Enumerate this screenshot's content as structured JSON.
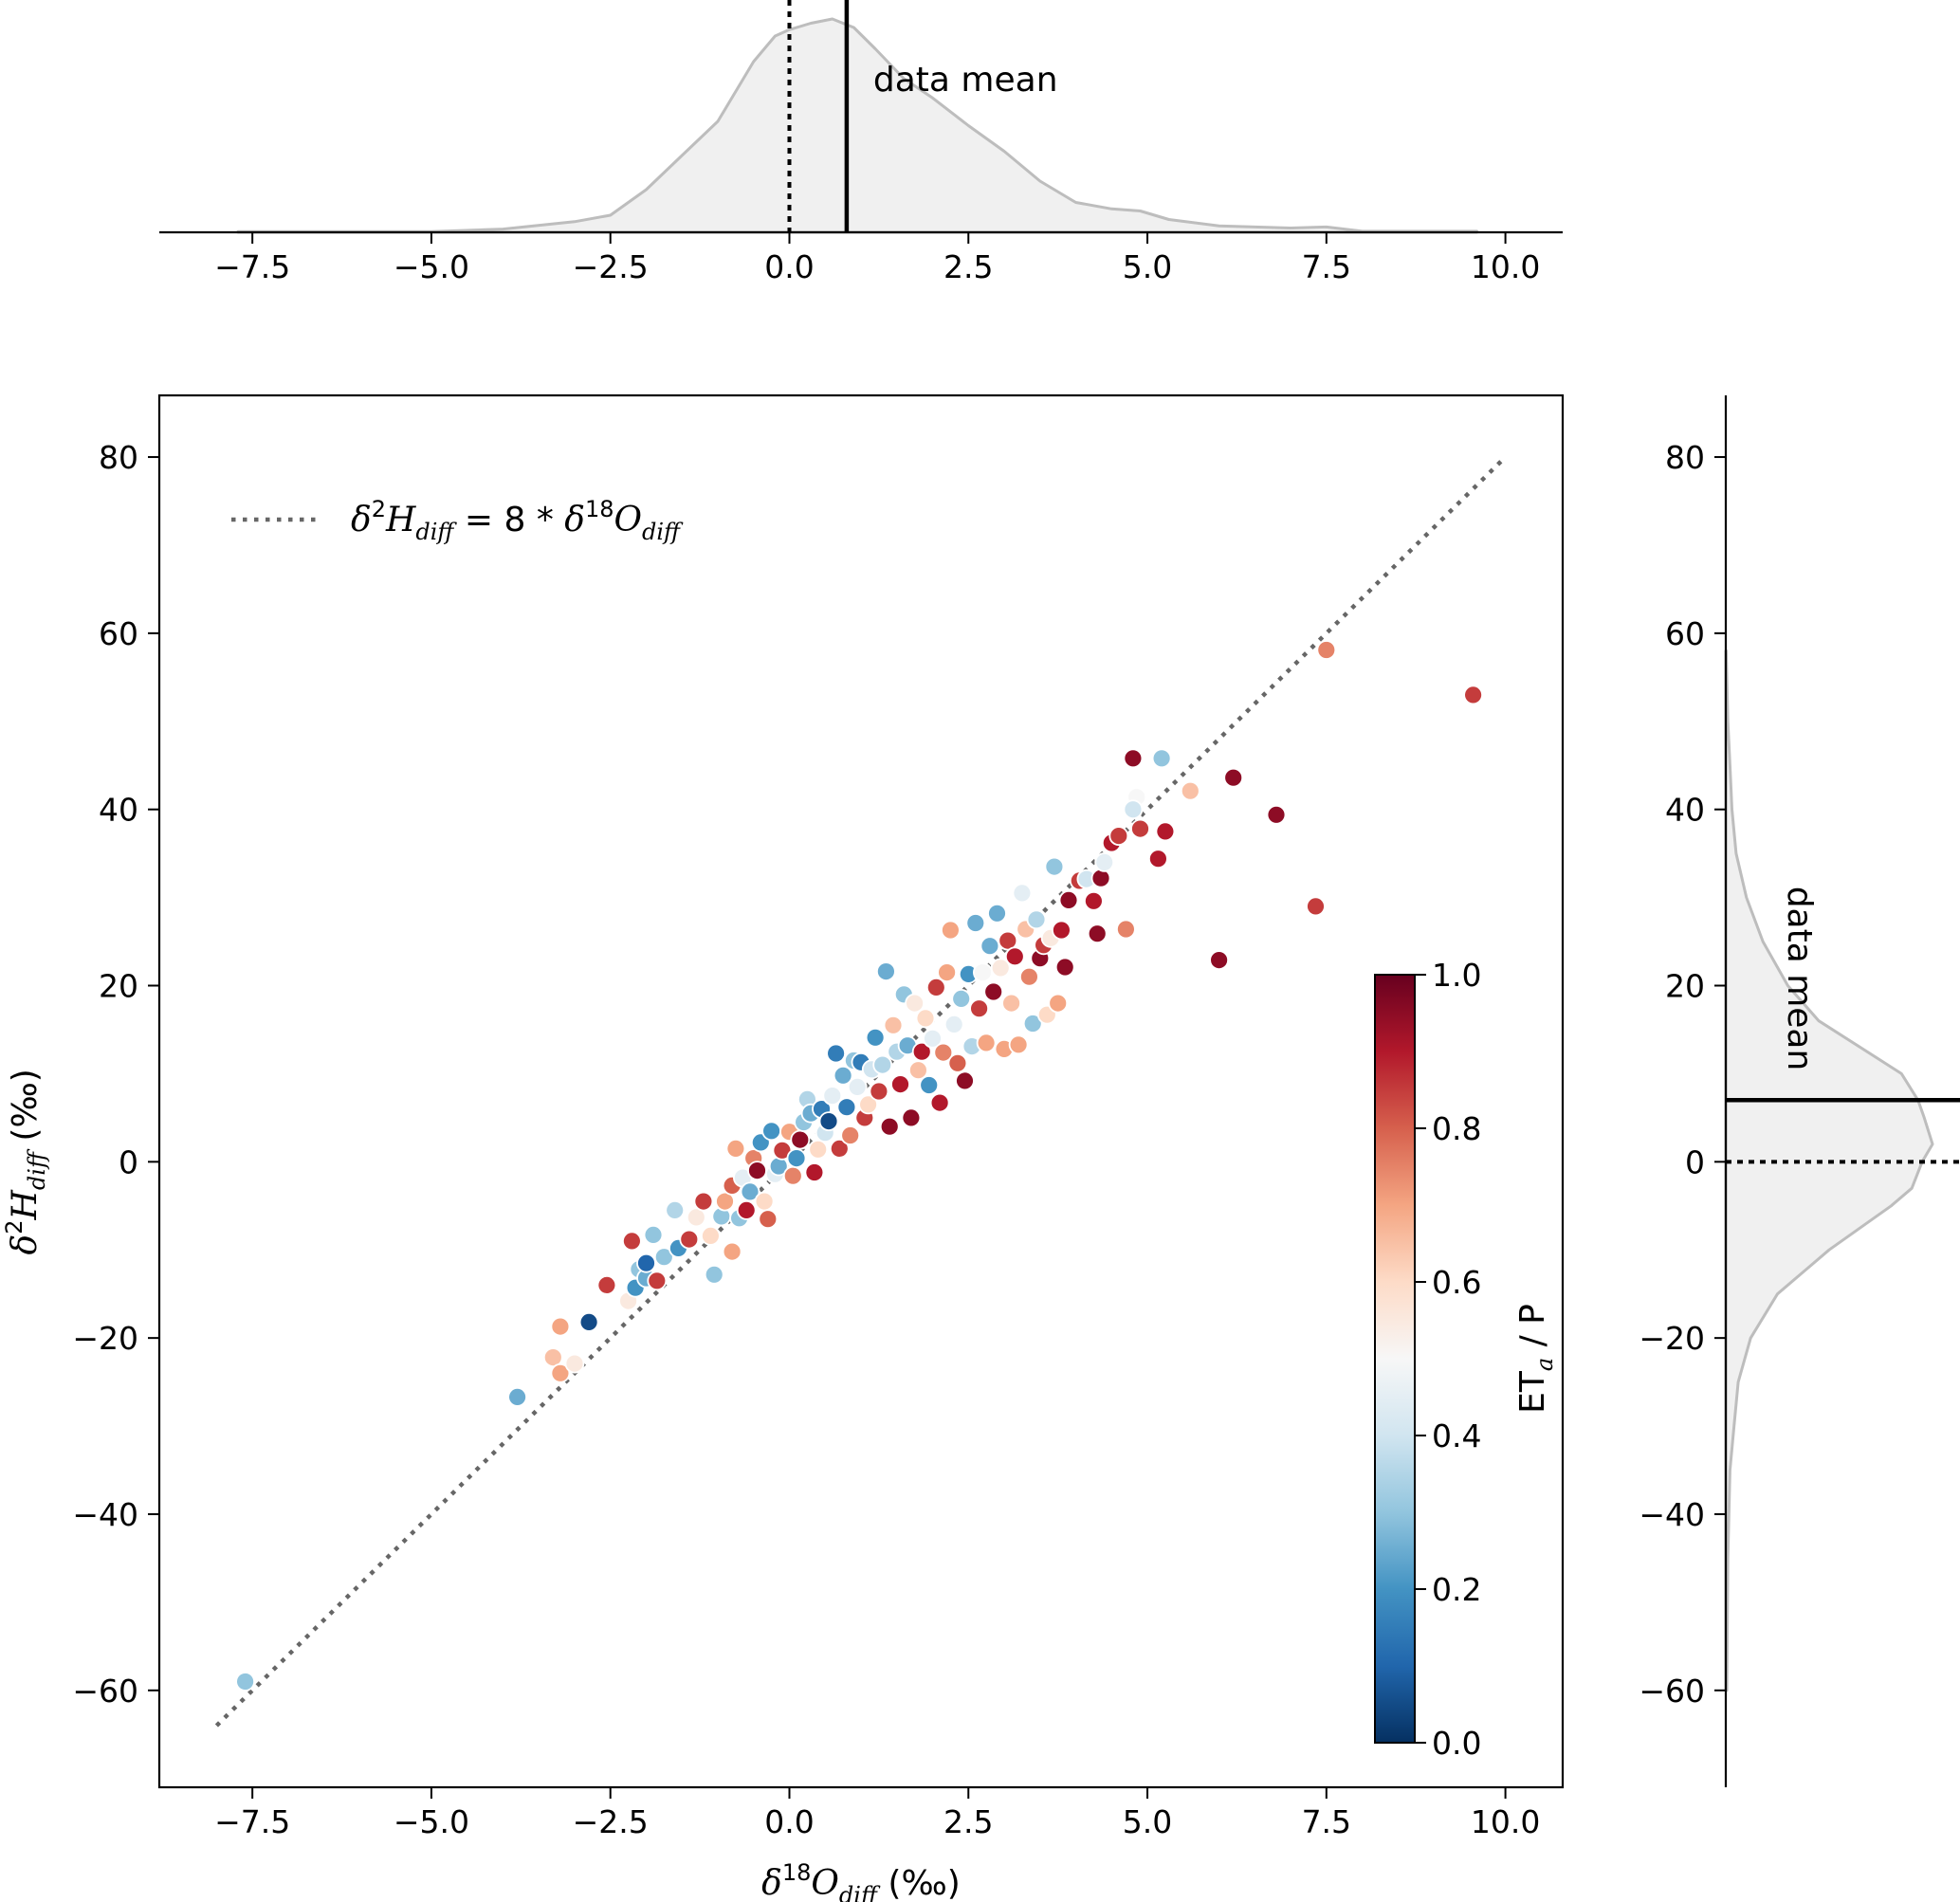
{
  "chart_data": {
    "type": "scatter",
    "xlabel": {
      "delta": "δ",
      "sup": "18",
      "base": "O",
      "sub": "diff",
      "unit": " (‰)"
    },
    "ylabel": {
      "delta": "δ",
      "sup": "2",
      "base": "H",
      "sub": "diff",
      "unit": "  (‰)"
    },
    "xlim": [
      -8.8,
      10.8
    ],
    "ylim": [
      -71,
      87
    ],
    "xticks": [
      -7.5,
      -5.0,
      -2.5,
      0.0,
      2.5,
      5.0,
      7.5,
      10.0
    ],
    "xtick_labels": [
      "−7.5",
      "−5.0",
      "−2.5",
      "0.0",
      "2.5",
      "5.0",
      "7.5",
      "10.0"
    ],
    "yticks": [
      -60,
      -40,
      -20,
      0,
      20,
      40,
      60,
      80
    ],
    "ytick_labels": [
      "−60",
      "−40",
      "−20",
      "0",
      "20",
      "40",
      "60",
      "80"
    ],
    "grid": false,
    "legend": {
      "placement": "upper-left",
      "line_style": "dotted",
      "label": {
        "d1": "δ",
        "s1": "2",
        "b1": "H",
        "sub1": "diff",
        "mid": " = 8 * ",
        "d2": "δ",
        "s2": "18",
        "b2": "O",
        "sub2": "diff"
      }
    },
    "reference_line": {
      "slope": 8,
      "intercept": 0,
      "x_range": [
        -8,
        10
      ],
      "color": "#666666"
    },
    "colorbar": {
      "label": {
        "base": "ET",
        "sub": "a",
        "rest": " / P"
      },
      "range": [
        0,
        1
      ],
      "ticks": [
        0.0,
        0.2,
        0.4,
        0.6,
        0.8,
        1.0
      ],
      "tick_labels": [
        "0.0",
        "0.2",
        "0.4",
        "0.6",
        "0.8",
        "1.0"
      ],
      "colormap": "RdBu_r",
      "colors": [
        "#053061",
        "#2166ac",
        "#4393c3",
        "#92c5de",
        "#d1e5f0",
        "#f7f7f7",
        "#fddbc7",
        "#f4a582",
        "#d6604d",
        "#b2182b",
        "#67001f"
      ]
    },
    "points": [
      [
        -7.6,
        -59,
        0.3
      ],
      [
        -3.8,
        -26.7,
        0.25
      ],
      [
        -3.3,
        -22.2,
        0.65
      ],
      [
        -3.2,
        -18.7,
        0.7
      ],
      [
        -3.2,
        -24,
        0.7
      ],
      [
        -3.0,
        -22.9,
        0.55
      ],
      [
        -2.8,
        -18.2,
        0.05
      ],
      [
        -2.55,
        -14,
        0.85
      ],
      [
        -2.25,
        -15.8,
        0.55
      ],
      [
        -2.15,
        -14.3,
        0.2
      ],
      [
        -2.1,
        -12.2,
        0.3
      ],
      [
        -2.0,
        -13.2,
        0.25
      ],
      [
        -2.2,
        -9,
        0.85
      ],
      [
        -2.0,
        -11.5,
        0.1
      ],
      [
        -1.9,
        -8.3,
        0.3
      ],
      [
        -1.85,
        -13.5,
        0.85
      ],
      [
        -1.75,
        -10.8,
        0.3
      ],
      [
        -1.6,
        -5.5,
        0.35
      ],
      [
        -1.55,
        -9.8,
        0.2
      ],
      [
        -1.4,
        -8.8,
        0.85
      ],
      [
        -1.3,
        -6.3,
        0.55
      ],
      [
        -1.2,
        -4.5,
        0.85
      ],
      [
        -1.1,
        -8.4,
        0.6
      ],
      [
        -1.05,
        -12.8,
        0.3
      ],
      [
        -0.95,
        -6.2,
        0.3
      ],
      [
        -0.9,
        -4.5,
        0.7
      ],
      [
        -0.8,
        -10.2,
        0.7
      ],
      [
        -0.8,
        -2.7,
        0.8
      ],
      [
        -0.75,
        1.5,
        0.7
      ],
      [
        -0.7,
        -6.4,
        0.3
      ],
      [
        -0.65,
        -1.8,
        0.45
      ],
      [
        -0.6,
        -5.5,
        0.9
      ],
      [
        -0.55,
        -3.4,
        0.25
      ],
      [
        -0.5,
        0.4,
        0.75
      ],
      [
        -0.45,
        -1.0,
        0.95
      ],
      [
        -0.4,
        2.2,
        0.2
      ],
      [
        -0.35,
        -4.5,
        0.6
      ],
      [
        -0.3,
        -6.5,
        0.8
      ],
      [
        -0.25,
        3.5,
        0.2
      ],
      [
        -0.2,
        -1.4,
        0.45
      ],
      [
        -0.15,
        -0.5,
        0.25
      ],
      [
        -0.1,
        1.3,
        0.85
      ],
      [
        0.0,
        3.4,
        0.7
      ],
      [
        0.05,
        -1.6,
        0.75
      ],
      [
        0.1,
        0.4,
        0.2
      ],
      [
        0.15,
        2.5,
        0.95
      ],
      [
        0.2,
        4.5,
        0.3
      ],
      [
        0.25,
        7.1,
        0.35
      ],
      [
        0.3,
        5.5,
        0.25
      ],
      [
        0.35,
        -1.2,
        0.9
      ],
      [
        0.4,
        1.4,
        0.6
      ],
      [
        0.45,
        6.0,
        0.15
      ],
      [
        0.5,
        3.3,
        0.4
      ],
      [
        0.55,
        4.6,
        0.05
      ],
      [
        0.6,
        7.5,
        0.45
      ],
      [
        0.65,
        12.3,
        0.15
      ],
      [
        0.7,
        1.5,
        0.85
      ],
      [
        0.75,
        9.8,
        0.25
      ],
      [
        0.8,
        6.2,
        0.15
      ],
      [
        0.85,
        3.0,
        0.75
      ],
      [
        0.9,
        11.5,
        0.3
      ],
      [
        0.95,
        8.5,
        0.45
      ],
      [
        1.0,
        11.3,
        0.15
      ],
      [
        1.05,
        5.0,
        0.85
      ],
      [
        1.1,
        6.5,
        0.6
      ],
      [
        1.15,
        10.5,
        0.4
      ],
      [
        1.2,
        14.1,
        0.2
      ],
      [
        1.25,
        8.0,
        0.85
      ],
      [
        1.3,
        11.0,
        0.35
      ],
      [
        1.35,
        21.6,
        0.25
      ],
      [
        1.4,
        4.0,
        0.95
      ],
      [
        1.45,
        15.5,
        0.65
      ],
      [
        1.5,
        12.5,
        0.35
      ],
      [
        1.55,
        8.8,
        0.9
      ],
      [
        1.6,
        19.0,
        0.3
      ],
      [
        1.65,
        13.2,
        0.25
      ],
      [
        1.7,
        5.0,
        0.95
      ],
      [
        1.75,
        18.0,
        0.55
      ],
      [
        1.8,
        10.4,
        0.65
      ],
      [
        1.85,
        12.5,
        0.9
      ],
      [
        1.9,
        16.3,
        0.6
      ],
      [
        1.95,
        8.7,
        0.2
      ],
      [
        2.0,
        14.0,
        0.45
      ],
      [
        2.05,
        19.8,
        0.85
      ],
      [
        2.1,
        6.7,
        0.9
      ],
      [
        2.15,
        12.4,
        0.75
      ],
      [
        2.2,
        21.5,
        0.7
      ],
      [
        2.25,
        26.3,
        0.7
      ],
      [
        2.3,
        15.6,
        0.45
      ],
      [
        2.35,
        11.2,
        0.8
      ],
      [
        2.4,
        18.5,
        0.3
      ],
      [
        2.45,
        9.2,
        0.95
      ],
      [
        2.5,
        21.3,
        0.2
      ],
      [
        2.55,
        13.1,
        0.35
      ],
      [
        2.6,
        27.1,
        0.25
      ],
      [
        2.65,
        17.4,
        0.85
      ],
      [
        2.7,
        21.5,
        0.5
      ],
      [
        2.75,
        13.5,
        0.7
      ],
      [
        2.8,
        24.5,
        0.25
      ],
      [
        2.85,
        19.3,
        0.95
      ],
      [
        2.9,
        28.2,
        0.25
      ],
      [
        2.95,
        22.0,
        0.55
      ],
      [
        3.0,
        12.8,
        0.7
      ],
      [
        3.05,
        25.1,
        0.85
      ],
      [
        3.1,
        18.0,
        0.65
      ],
      [
        3.15,
        23.3,
        0.9
      ],
      [
        3.2,
        13.3,
        0.7
      ],
      [
        3.25,
        30.5,
        0.45
      ],
      [
        3.3,
        26.4,
        0.65
      ],
      [
        3.35,
        21.0,
        0.75
      ],
      [
        3.4,
        15.7,
        0.3
      ],
      [
        3.45,
        27.5,
        0.35
      ],
      [
        3.5,
        23.1,
        0.95
      ],
      [
        3.55,
        24.6,
        0.85
      ],
      [
        3.6,
        16.7,
        0.6
      ],
      [
        3.65,
        25.4,
        0.55
      ],
      [
        3.7,
        33.5,
        0.3
      ],
      [
        3.75,
        18.0,
        0.7
      ],
      [
        3.8,
        26.3,
        0.9
      ],
      [
        3.85,
        22.1,
        0.95
      ],
      [
        3.9,
        29.7,
        0.95
      ],
      [
        4.05,
        31.9,
        0.85
      ],
      [
        4.15,
        32.1,
        0.4
      ],
      [
        4.25,
        29.6,
        0.9
      ],
      [
        4.3,
        25.9,
        0.95
      ],
      [
        4.35,
        32.2,
        0.95
      ],
      [
        4.4,
        34.0,
        0.45
      ],
      [
        4.5,
        36.2,
        0.9
      ],
      [
        4.6,
        37.0,
        0.85
      ],
      [
        4.7,
        26.4,
        0.75
      ],
      [
        4.8,
        45.8,
        0.95
      ],
      [
        4.85,
        41.4,
        0.5
      ],
      [
        4.8,
        40.0,
        0.4
      ],
      [
        4.9,
        37.8,
        0.85
      ],
      [
        5.15,
        34.4,
        0.9
      ],
      [
        5.2,
        45.8,
        0.3
      ],
      [
        5.25,
        37.5,
        0.9
      ],
      [
        5.6,
        42.1,
        0.65
      ],
      [
        6.0,
        22.9,
        0.95
      ],
      [
        6.2,
        43.6,
        0.95
      ],
      [
        6.8,
        39.4,
        0.95
      ],
      [
        7.35,
        29.0,
        0.85
      ],
      [
        7.5,
        58.1,
        0.75
      ],
      [
        9.55,
        53.0,
        0.85
      ]
    ],
    "marginal_top": {
      "data_mean_label": "data mean",
      "zero_line_style": "dotted",
      "data_mean_x": 0.8,
      "density_x": [
        -7.7,
        -5.0,
        -4.0,
        -3.0,
        -2.5,
        -2.0,
        -1.5,
        -1.0,
        -0.5,
        -0.2,
        0.0,
        0.3,
        0.6,
        0.9,
        1.2,
        1.6,
        2.0,
        2.5,
        3.0,
        3.5,
        4.0,
        4.5,
        4.9,
        5.3,
        6.0,
        7.0,
        7.5,
        8.0,
        9.6
      ],
      "density_y": [
        0.003,
        0.003,
        0.015,
        0.05,
        0.08,
        0.2,
        0.36,
        0.52,
        0.8,
        0.92,
        0.95,
        0.98,
        1.0,
        0.96,
        0.86,
        0.72,
        0.63,
        0.5,
        0.38,
        0.24,
        0.14,
        0.11,
        0.1,
        0.06,
        0.03,
        0.02,
        0.025,
        0.005,
        0.005
      ]
    },
    "marginal_right": {
      "data_mean_label": "data mean",
      "zero_line_style": "dotted",
      "data_mean_y": 7,
      "density_y": [
        -60,
        -45,
        -35,
        -30,
        -25,
        -20,
        -15,
        -10,
        -5,
        -3,
        0,
        2,
        5,
        7,
        10,
        13,
        16,
        20,
        25,
        30,
        35,
        40,
        45,
        50,
        55,
        58
      ],
      "density_v": [
        0.005,
        0.01,
        0.02,
        0.04,
        0.06,
        0.12,
        0.25,
        0.5,
        0.8,
        0.9,
        0.95,
        1.0,
        0.96,
        0.93,
        0.85,
        0.65,
        0.45,
        0.3,
        0.18,
        0.1,
        0.05,
        0.03,
        0.02,
        0.01,
        0.005,
        0.002
      ]
    }
  }
}
